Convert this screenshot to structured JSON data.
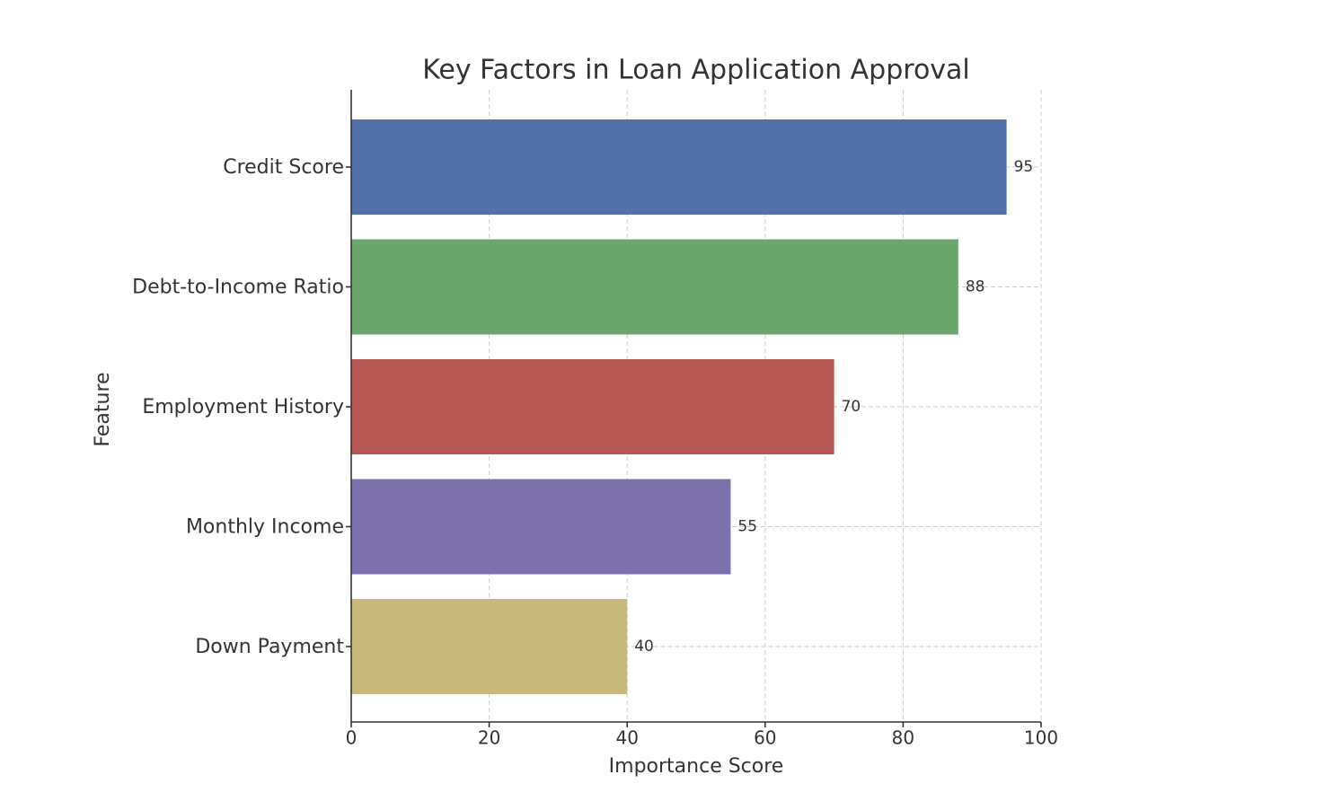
{
  "chart_data": {
    "type": "barh",
    "title": "Key Factors in Loan Application Approval",
    "xlabel": "Importance Score",
    "ylabel": "Feature",
    "categories": [
      "Credit Score",
      "Debt-to-Income Ratio",
      "Employment History",
      "Monthly Income",
      "Down Payment"
    ],
    "values": [
      95,
      88,
      70,
      55,
      40
    ],
    "colors": [
      "#5470a9",
      "#6aa66e",
      "#b35654",
      "#7d71ab",
      "#c8b97a"
    ],
    "xlim": [
      0,
      100
    ],
    "xticks": [
      0,
      20,
      40,
      60,
      80,
      100
    ],
    "grid": true
  }
}
